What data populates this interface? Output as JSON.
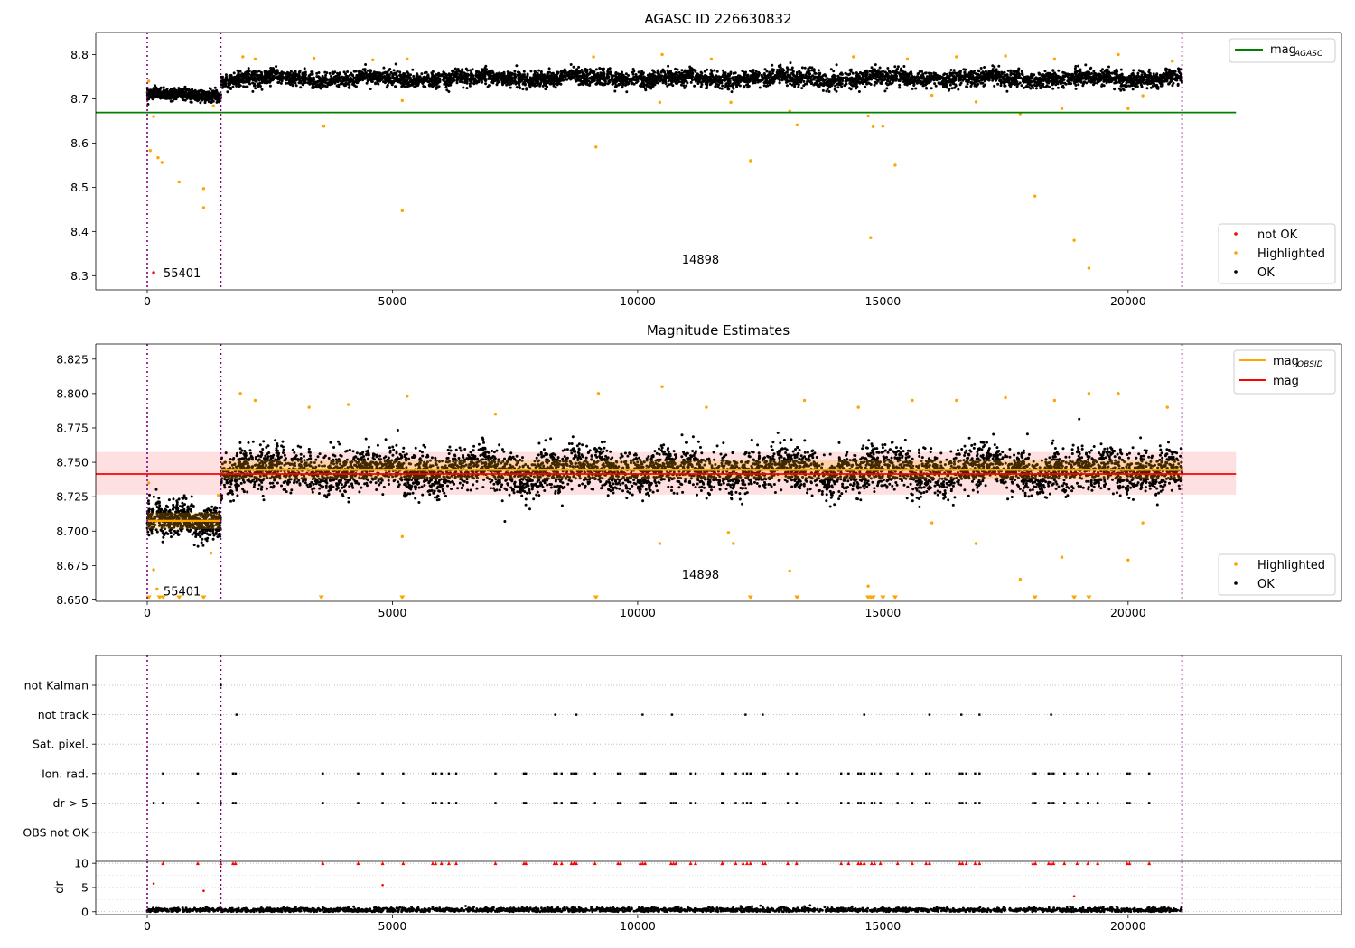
{
  "chart_data": [
    {
      "type": "scatter",
      "title": "AGASC ID 226630832",
      "xlabel": "",
      "ylabel": "",
      "xlim": [
        -1050,
        24350
      ],
      "ylim": [
        8.268,
        8.85
      ],
      "xticks": [
        0,
        5000,
        10000,
        15000,
        20000
      ],
      "xtick_labels": [
        "0",
        "5000",
        "10000",
        "15000",
        "20000"
      ],
      "yticks": [
        8.3,
        8.4,
        8.5,
        8.6,
        8.7,
        8.8
      ],
      "ytick_labels": [
        "8.3",
        "8.4",
        "8.5",
        "8.6",
        "8.7",
        "8.8"
      ],
      "vlines": [
        0,
        1500,
        21100
      ],
      "annotations": [
        {
          "text": "55401",
          "x": 330,
          "y": 8.305
        },
        {
          "text": "14898",
          "x": 10900,
          "y": 8.335
        }
      ],
      "reference_line": {
        "name": "mag_AGASC",
        "y": 8.669,
        "x_range": [
          -1050,
          22200
        ],
        "color": "#008000"
      },
      "legends": [
        {
          "position": "upper right",
          "entries": [
            {
              "label": "mag",
              "subscript": "AGASC",
              "color": "#008000",
              "kind": "line"
            }
          ]
        },
        {
          "position": "lower right",
          "entries": [
            {
              "label": "not OK",
              "color": "#ff0000",
              "kind": "point"
            },
            {
              "label": "Highlighted",
              "color": "#ffa500",
              "kind": "point"
            },
            {
              "label": "OK",
              "color": "#000000",
              "kind": "point"
            }
          ]
        }
      ],
      "series": [
        {
          "name": "OK",
          "color": "#000000",
          "segments": [
            {
              "x_range": [
                0,
                1500
              ],
              "center": 8.708,
              "spread": 0.008
            },
            {
              "x_range": [
                1500,
                21100
              ],
              "center": 8.746,
              "spread": 0.012
            }
          ]
        },
        {
          "name": "Highlighted",
          "color": "#ffa500",
          "points": [
            [
              30,
              8.74
            ],
            [
              60,
              8.583
            ],
            [
              220,
              8.567
            ],
            [
              300,
              8.556
            ],
            [
              130,
              8.66
            ],
            [
              650,
              8.512
            ],
            [
              1150,
              8.497
            ],
            [
              1150,
              8.454
            ],
            [
              3600,
              8.638
            ],
            [
              5200,
              8.447
            ],
            [
              5200,
              8.696
            ],
            [
              9150,
              8.591
            ],
            [
              10450,
              8.692
            ],
            [
              11900,
              8.692
            ],
            [
              12300,
              8.56
            ],
            [
              13100,
              8.672
            ],
            [
              13250,
              8.641
            ],
            [
              14700,
              8.661
            ],
            [
              14750,
              8.386
            ],
            [
              14800,
              8.637
            ],
            [
              15000,
              8.638
            ],
            [
              15250,
              8.55
            ],
            [
              16000,
              8.708
            ],
            [
              16900,
              8.693
            ],
            [
              17800,
              8.666
            ],
            [
              18100,
              8.48
            ],
            [
              18650,
              8.678
            ],
            [
              18900,
              8.38
            ],
            [
              19200,
              8.317
            ],
            [
              20000,
              8.678
            ],
            [
              20300,
              8.707
            ],
            [
              1350,
              8.684
            ],
            [
              1950,
              8.795
            ],
            [
              2200,
              8.79
            ],
            [
              3400,
              8.792
            ],
            [
              4600,
              8.788
            ],
            [
              5300,
              8.79
            ],
            [
              9100,
              8.795
            ],
            [
              10500,
              8.8
            ],
            [
              11500,
              8.79
            ],
            [
              14400,
              8.795
            ],
            [
              15500,
              8.79
            ],
            [
              16500,
              8.795
            ],
            [
              17500,
              8.797
            ],
            [
              18500,
              8.79
            ],
            [
              19800,
              8.8
            ],
            [
              20900,
              8.785
            ]
          ]
        },
        {
          "name": "not OK",
          "color": "#ff0000",
          "points": [
            [
              130,
              8.307
            ]
          ]
        }
      ]
    },
    {
      "type": "scatter",
      "title": "Magnitude Estimates",
      "xlabel": "",
      "ylabel": "",
      "xlim": [
        -1050,
        24350
      ],
      "ylim": [
        8.649,
        8.836
      ],
      "xticks": [
        0,
        5000,
        10000,
        15000,
        20000
      ],
      "xtick_labels": [
        "0",
        "5000",
        "10000",
        "15000",
        "20000"
      ],
      "yticks": [
        8.65,
        8.675,
        8.7,
        8.725,
        8.75,
        8.775,
        8.8,
        8.825
      ],
      "ytick_labels": [
        "8.650",
        "8.675",
        "8.700",
        "8.725",
        "8.750",
        "8.775",
        "8.800",
        "8.825"
      ],
      "vlines": [
        0,
        1500,
        21100
      ],
      "annotations": [
        {
          "text": "55401",
          "x": 330,
          "y": 8.656
        },
        {
          "text": "14898",
          "x": 10900,
          "y": 8.668
        }
      ],
      "mag_line": {
        "name": "mag",
        "y": 8.7415,
        "band": [
          8.7265,
          8.7575
        ],
        "x_range": [
          -1050,
          22200
        ],
        "color": "#ff0000"
      },
      "obsid_mag": [
        {
          "x_range": [
            0,
            1500
          ],
          "y": 8.7075,
          "band": [
            8.7015,
            8.7135
          ]
        },
        {
          "x_range": [
            1500,
            21100
          ],
          "y": 8.7445,
          "band": [
            8.7375,
            8.7515
          ]
        }
      ],
      "legends": [
        {
          "position": "upper right",
          "entries": [
            {
              "label": "mag",
              "subscript": "OBSID",
              "color": "#ffa500",
              "kind": "line"
            },
            {
              "label": "mag",
              "color": "#ff0000",
              "kind": "line"
            }
          ]
        },
        {
          "position": "lower right",
          "entries": [
            {
              "label": "Highlighted",
              "color": "#ffa500",
              "kind": "point"
            },
            {
              "label": "OK",
              "color": "#000000",
              "kind": "point"
            }
          ]
        }
      ],
      "series": [
        {
          "name": "OK",
          "color": "#000000",
          "segments": [
            {
              "x_range": [
                0,
                1500
              ],
              "center": 8.707,
              "spread": 0.008
            },
            {
              "x_range": [
                1500,
                21100
              ],
              "center": 8.744,
              "spread": 0.01
            }
          ]
        },
        {
          "name": "Highlighted",
          "color": "#ffa500",
          "points": [
            [
              30,
              8.735
            ],
            [
              130,
              8.672
            ],
            [
              200,
              8.658
            ],
            [
              1300,
              8.684
            ],
            [
              1450,
              8.726
            ],
            [
              5200,
              8.696
            ],
            [
              10450,
              8.691
            ],
            [
              11850,
              8.699
            ],
            [
              11950,
              8.691
            ],
            [
              13100,
              8.671
            ],
            [
              14700,
              8.66
            ],
            [
              16000,
              8.706
            ],
            [
              16900,
              8.691
            ],
            [
              17800,
              8.665
            ],
            [
              18650,
              8.681
            ],
            [
              20000,
              8.679
            ],
            [
              20300,
              8.706
            ],
            [
              1900,
              8.8
            ],
            [
              2200,
              8.795
            ],
            [
              3300,
              8.79
            ],
            [
              4100,
              8.792
            ],
            [
              5300,
              8.798
            ],
            [
              7100,
              8.785
            ],
            [
              9200,
              8.8
            ],
            [
              10500,
              8.805
            ],
            [
              11400,
              8.79
            ],
            [
              13400,
              8.795
            ],
            [
              14500,
              8.79
            ],
            [
              15600,
              8.795
            ],
            [
              16500,
              8.795
            ],
            [
              17500,
              8.797
            ],
            [
              18500,
              8.795
            ],
            [
              19200,
              8.8
            ],
            [
              19800,
              8.8
            ],
            [
              20800,
              8.79
            ]
          ]
        },
        {
          "name": "Highlighted",
          "marker": "triangle-down",
          "color": "#ffa500",
          "y": 8.65,
          "x": [
            30,
            250,
            320,
            650,
            1150,
            3550,
            5200,
            9150,
            12300,
            13250,
            14700,
            14750,
            14800,
            15000,
            15250,
            18100,
            18900,
            19200
          ]
        }
      ]
    },
    {
      "type": "scatter",
      "title": "",
      "xlabel": "",
      "ylabel": "",
      "xlim": [
        -1050,
        24350
      ],
      "categories": [
        "not Kalman",
        "not track",
        "Sat. pixel.",
        "Ion. rad.",
        "dr > 5",
        "OBS not OK"
      ],
      "vlines": [
        0,
        1500,
        21100
      ],
      "grid": true,
      "series": [
        {
          "name": "not Kalman",
          "color": "#000000",
          "x": [
            1500
          ]
        },
        {
          "name": "not track",
          "color": "#000000",
          "x": [
            1820,
            8320,
            8750,
            10100,
            10700,
            12200,
            12550,
            14620,
            15950,
            16600,
            16970,
            18430
          ]
        },
        {
          "name": "Sat. pixel.",
          "color": "#000000",
          "x": []
        },
        {
          "name": "Ion. rad.",
          "color": "#000000",
          "x": [
            320,
            1030,
            1500,
            1750,
            1800,
            3580,
            4300,
            4800,
            5220,
            5820,
            5880,
            6000,
            6150,
            6300,
            7100,
            7680,
            7720,
            8300,
            8350,
            8450,
            8650,
            8700,
            8750,
            9130,
            9600,
            9650,
            10050,
            10100,
            10150,
            10680,
            10730,
            10780,
            11080,
            11180,
            11720,
            11730,
            12000,
            12150,
            12230,
            12300,
            12550,
            12600,
            13060,
            13240,
            14150,
            14300,
            14500,
            14550,
            14620,
            14770,
            14830,
            14950,
            15300,
            15600,
            15880,
            15950,
            16570,
            16620,
            16700,
            16880,
            16970,
            18060,
            18110,
            18380,
            18430,
            18480,
            18700,
            18960,
            19180,
            19380,
            19980,
            20030,
            20430
          ]
        },
        {
          "name": "dr > 5",
          "color": "#000000",
          "x": [
            130,
            320,
            1030,
            1500,
            1750,
            1800,
            3580,
            4300,
            4800,
            5220,
            5820,
            5880,
            6000,
            6150,
            6300,
            7100,
            7680,
            7720,
            8300,
            8350,
            8450,
            8650,
            8700,
            8750,
            9130,
            9600,
            9650,
            10050,
            10100,
            10150,
            10680,
            10730,
            10780,
            11080,
            11180,
            11720,
            11730,
            12000,
            12150,
            12230,
            12300,
            12550,
            12600,
            13060,
            13240,
            14150,
            14300,
            14500,
            14550,
            14620,
            14770,
            14830,
            14950,
            15300,
            15600,
            15880,
            15950,
            16570,
            16620,
            16700,
            16880,
            16970,
            18060,
            18110,
            18380,
            18430,
            18480,
            18700,
            18960,
            19180,
            19380,
            19980,
            20030,
            20430
          ]
        },
        {
          "name": "OBS not OK",
          "color": "#000000",
          "x": []
        }
      ]
    },
    {
      "type": "scatter",
      "title": "",
      "xlabel": "",
      "ylabel": "dr",
      "xlim": [
        -1050,
        24350
      ],
      "ylim": [
        -0.6,
        10.4
      ],
      "xticks": [
        0,
        5000,
        10000,
        15000,
        20000
      ],
      "xtick_labels": [
        "0",
        "5000",
        "10000",
        "15000",
        "20000"
      ],
      "yticks": [
        0,
        5,
        10
      ],
      "ytick_labels": [
        "0",
        "5",
        "10"
      ],
      "vlines": [
        0,
        1500,
        21100
      ],
      "grid": true,
      "series": [
        {
          "name": "OK",
          "color": "#000000",
          "x_range": [
            0,
            21100
          ],
          "center": 0.35,
          "spread": 0.25
        },
        {
          "name": "not OK",
          "color": "#ff0000",
          "points": [
            [
              130,
              5.8
            ],
            [
              1150,
              4.3
            ],
            [
              4800,
              5.5
            ],
            [
              18900,
              3.2
            ]
          ]
        },
        {
          "name": "clipped",
          "marker": "triangle-up",
          "color": "#ff0000",
          "y": 10,
          "x": [
            320,
            1030,
            1500,
            1750,
            1800,
            3580,
            4300,
            4800,
            5220,
            5820,
            5880,
            6000,
            6150,
            6300,
            7100,
            7680,
            7720,
            8300,
            8350,
            8450,
            8650,
            8700,
            8750,
            9130,
            9600,
            9650,
            10050,
            10100,
            10150,
            10680,
            10730,
            10780,
            11080,
            11180,
            11720,
            11730,
            12000,
            12150,
            12230,
            12300,
            12550,
            12600,
            13060,
            13240,
            14150,
            14300,
            14500,
            14550,
            14620,
            14770,
            14830,
            14950,
            15300,
            15600,
            15880,
            15950,
            16570,
            16620,
            16700,
            16880,
            16970,
            18060,
            18110,
            18380,
            18430,
            18480,
            18700,
            18960,
            19180,
            19380,
            19980,
            20030,
            20430
          ]
        }
      ]
    }
  ]
}
